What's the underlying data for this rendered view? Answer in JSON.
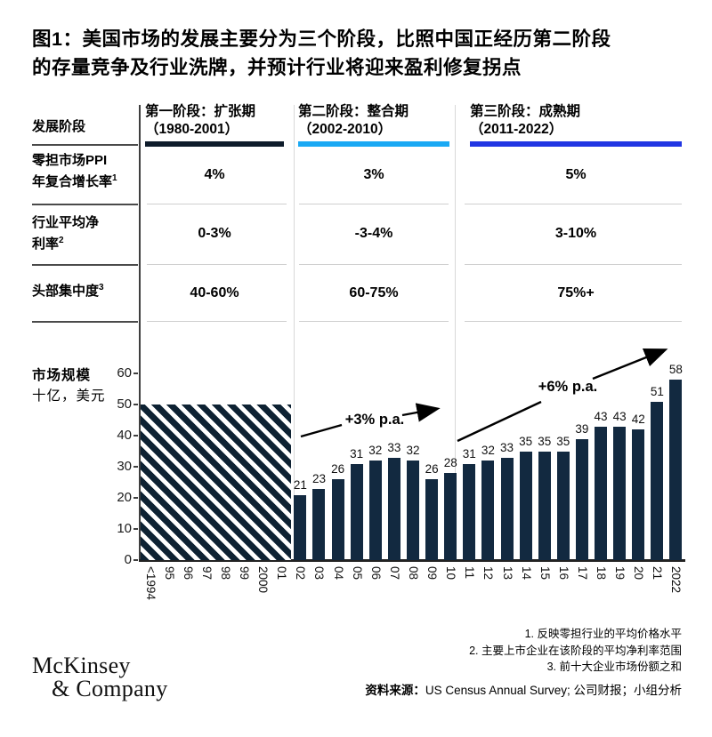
{
  "title": {
    "line1": "图1：美国市场的发展主要分为三个阶段，比照中国正经历第二阶段",
    "line2": "的存量竞争及行业洗牌，并预计行业将迎来盈利修复拐点"
  },
  "table": {
    "header_label": "发展阶段",
    "stages": [
      {
        "title": "第一阶段：扩张期",
        "years": "（1980-2001）",
        "color": "#0e1c2b"
      },
      {
        "title": "第二阶段：整合期",
        "years": "（2002-2010）",
        "color": "#1aa9f4"
      },
      {
        "title": "第三阶段：成熟期",
        "years": "（2011-2022）",
        "color": "#2136e3"
      }
    ],
    "rows": [
      {
        "label_line1": "零担市场PPI",
        "label_line2": "年复合增长率",
        "sup": "1",
        "values": [
          "4%",
          "3%",
          "5%"
        ]
      },
      {
        "label_line1": "行业平均净",
        "label_line2": "利率",
        "sup": "2",
        "values": [
          "0-3%",
          "-3-4%",
          "3-10%"
        ]
      },
      {
        "label_line1": "头部集中度",
        "label_line2": "",
        "sup": "3",
        "values": [
          "40-60%",
          "60-75%",
          "75%+"
        ]
      }
    ]
  },
  "chart_data": {
    "type": "bar",
    "title": "市场规模",
    "unit_label": "十亿，美元",
    "ylim": [
      0,
      60
    ],
    "yticks": [
      0,
      10,
      20,
      30,
      40,
      50,
      60
    ],
    "hatched_region": {
      "categories": [
        "<1994",
        "95",
        "96",
        "97",
        "98",
        "99",
        "2000",
        "01"
      ],
      "value": 50
    },
    "categories": [
      "02",
      "03",
      "04",
      "05",
      "06",
      "07",
      "08",
      "09",
      "10",
      "11",
      "12",
      "13",
      "14",
      "15",
      "16",
      "17",
      "18",
      "19",
      "20",
      "21",
      "2022"
    ],
    "values": [
      21,
      23,
      26,
      31,
      32,
      33,
      32,
      26,
      28,
      31,
      32,
      33,
      35,
      35,
      35,
      39,
      43,
      43,
      42,
      51,
      58
    ],
    "annotations": [
      {
        "text": "+3% p.a."
      },
      {
        "text": "+6% p.a."
      }
    ],
    "bar_color": "#122940",
    "hatch_color": "#0e2233",
    "legend_position": "none",
    "grid": false
  },
  "footer": {
    "logo_line1": "McKinsey",
    "logo_line2": "& Company",
    "footnotes": [
      "1. 反映零担行业的平均价格水平",
      "2. 主要上市企业在该阶段的平均净利率范围",
      "3. 前十大企业市场份额之和"
    ],
    "source_label": "资料来源：",
    "source_text": "US Census Annual Survey; 公司财报；小组分析"
  }
}
